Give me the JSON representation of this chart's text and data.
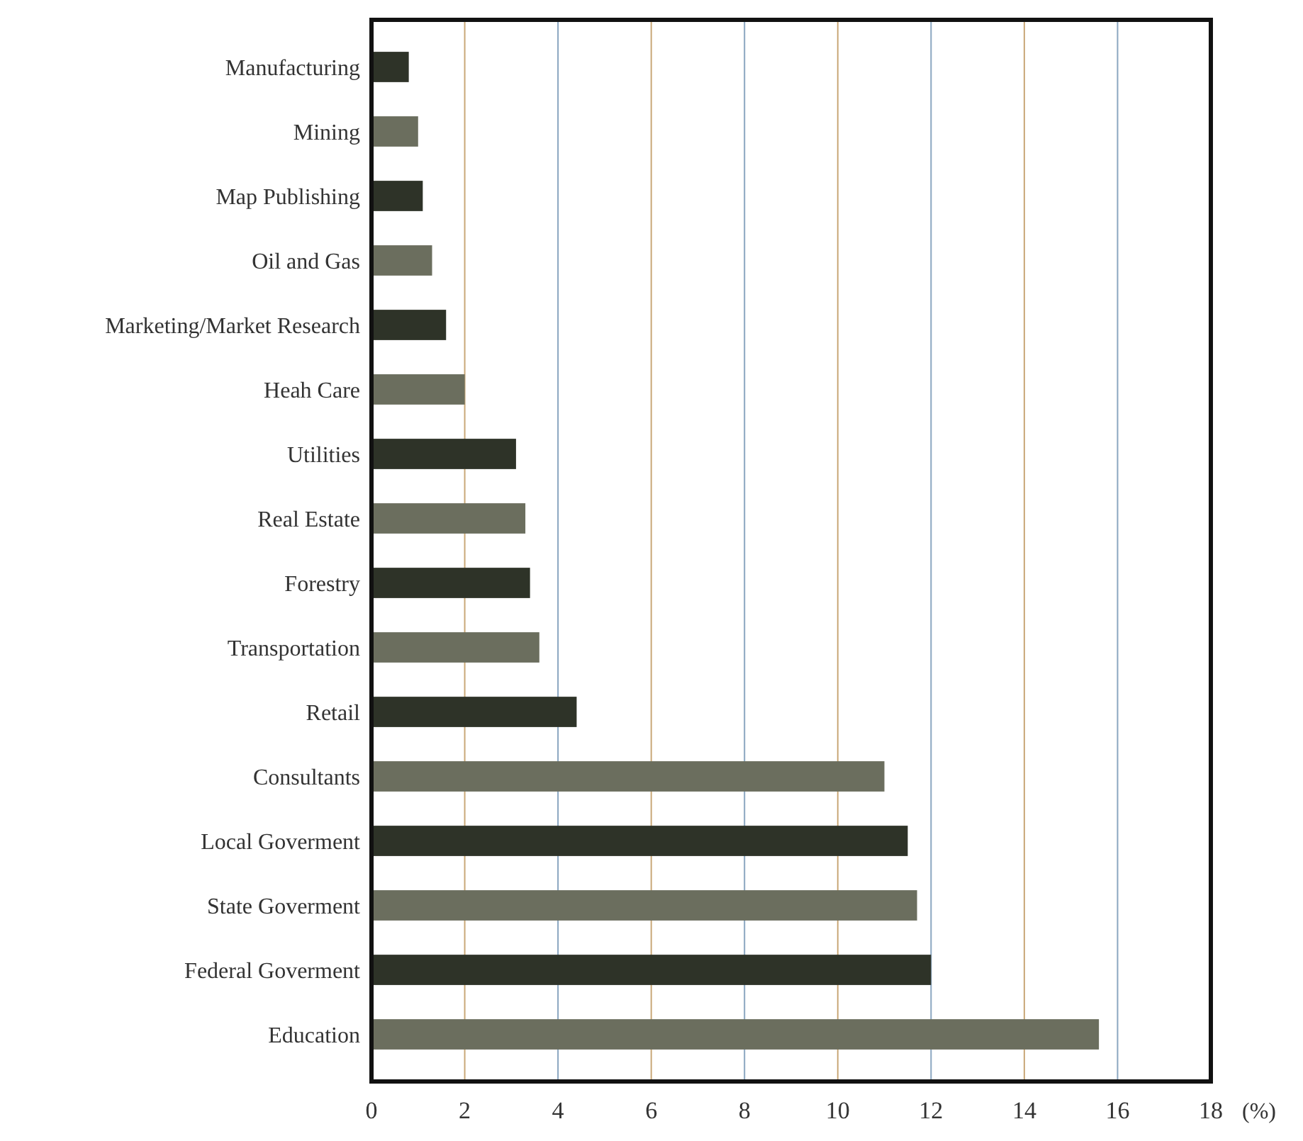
{
  "chart_data": {
    "type": "bar",
    "orientation": "horizontal",
    "xlabel": "(%)",
    "categories": [
      "Manufacturing",
      "Mining",
      "Map Publishing",
      "Oil and Gas",
      "Marketing/Market Research",
      "Heah Care",
      "Utilities",
      "Real Estate",
      "Forestry",
      "Transportation",
      "Retail",
      "Consultants",
      "Local Goverment",
      "State Goverment",
      "Federal Goverment",
      "Education"
    ],
    "values": [
      0.8,
      1.0,
      1.1,
      1.3,
      1.6,
      2.0,
      3.1,
      3.3,
      3.4,
      3.6,
      4.4,
      11.0,
      11.5,
      11.7,
      12.0,
      15.6
    ],
    "colors": [
      "#2e3328",
      "#6b6e5e",
      "#2e3328",
      "#6b6e5e",
      "#2e3328",
      "#6b6e5e",
      "#2e3328",
      "#6b6e5e",
      "#2e3328",
      "#6b6e5e",
      "#2e3328",
      "#6b6e5e",
      "#2e3328",
      "#6b6e5e",
      "#2e3328",
      "#6b6e5e"
    ],
    "xlim": [
      0,
      18
    ],
    "xticks": [
      0,
      2,
      4,
      6,
      8,
      10,
      12,
      14,
      16,
      18
    ],
    "grid": "x"
  }
}
